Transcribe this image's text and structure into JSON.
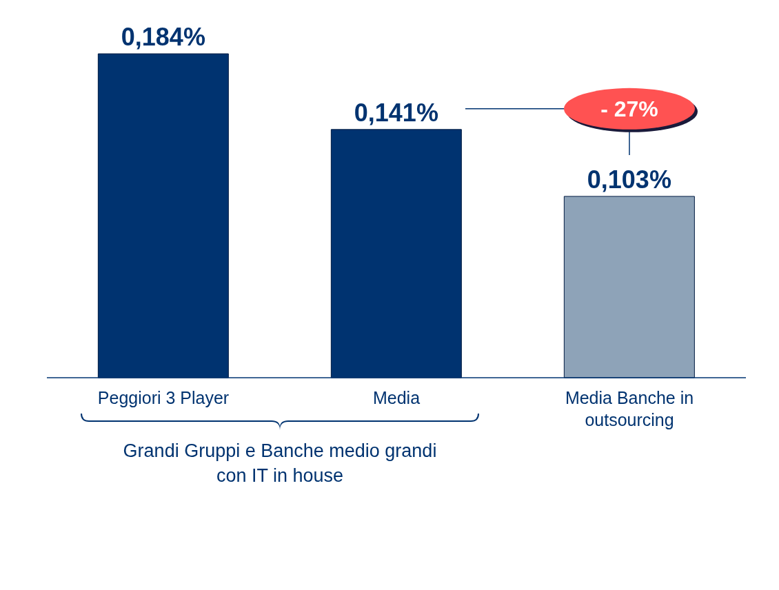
{
  "chart_data": {
    "type": "bar",
    "categories": [
      "Peggiori 3 Player",
      "Media",
      "Media Banche in  outsourcing"
    ],
    "values": [
      0.184,
      0.141,
      0.103
    ],
    "colors": [
      "#003370",
      "#003370",
      "#8ea3b8"
    ],
    "value_labels": [
      "0,184%",
      "0,141%",
      "0,103%"
    ],
    "annotations": [
      "- 27%",
      "Grandi Gruppi e Banche medio grandi  con IT in house"
    ],
    "grid": false,
    "legend": false
  }
}
